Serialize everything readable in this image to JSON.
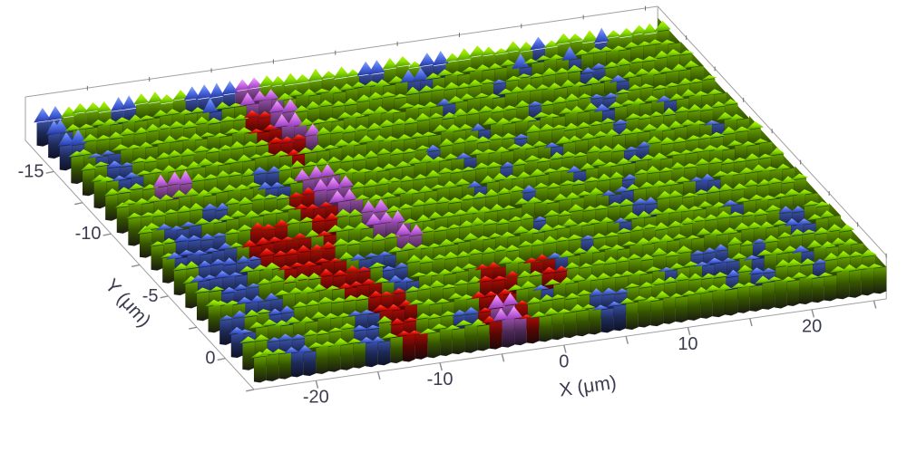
{
  "figure": {
    "description": "3D surface topography plot with categorical phase coloring",
    "background": "#ffffff"
  },
  "chart_data": {
    "type": "heatmap",
    "render_style": "3d-surface-categorical",
    "title": "",
    "xlabel": "X (μm)",
    "ylabel": "Y (μm)",
    "units": "μm",
    "x_range": [
      -25,
      26
    ],
    "y_range": [
      -17.5,
      2.5
    ],
    "x_major_ticks": [
      -20,
      -10,
      0,
      10,
      20
    ],
    "x_minor_tick_step": 5,
    "y_major_ticks": [
      -15,
      -10,
      -5,
      0
    ],
    "y_minor_tick_step": 2.5,
    "legend_position": "none",
    "grid_lines": "off",
    "axis_color": "#a0a0a0",
    "tick_color": "#8a8a8a",
    "edge_tick_color": "#6e6e6e",
    "label_color": "#3c3c50",
    "tick_font_px": 20,
    "title_font_px": 21,
    "categories": {
      "g": {
        "name": "green-matrix",
        "color": "#8ee000",
        "light": "#b6f312",
        "dark": "#4e9a00",
        "deep": "#191b10"
      },
      "b": {
        "name": "blue-phase",
        "color": "#4f6fe6",
        "light": "#8ea8f4",
        "dark": "#2537a4",
        "deep": "#0e1226"
      },
      "r": {
        "name": "red-phase",
        "color": "#e81208",
        "light": "#ff5a40",
        "dark": "#8e0300",
        "deep": "#1d0808"
      },
      "m": {
        "name": "magenta-phase",
        "color": "#d06ee8",
        "light": "#efaef4",
        "dark": "#9038b8",
        "deep": "#1c1024"
      }
    },
    "grid": {
      "ncols": 51,
      "nrows": 20,
      "cell_um": 1,
      "rows": [
        "bbggggbbggggbbbbmmggggggggbbgggbbgggggggbggggbggggg",
        "bbgggggggggggbggmmmggggggggggbbgggggggbgggbgggggggg",
        "bbgggggggggggggrrmmggggggggggggggggbggggggbbggggggg",
        "ggbbgggggggggggrrmmgggggggggggbgggggggggggggbgggggg",
        "ggbbgggggggggggrrrmgggggggggggggggggbggggbbgggggggg",
        "ggbbggggggggggggrggggggggggggggbgggggggggbggggbgggg",
        "ggggmmmgggggbbggggggggggggbggggggbgggggggbggggggggg",
        "ggggggggggggbbgmmmggggggggggbggggggbggggggggggggbgg",
        "ggggggbbgggggrrmmmggggggggggggbgggggggggbbggggggggg",
        "ggbbbggggggggrrrmmgggggggggbgggggggbggggggggggggggg",
        "ggbbbbggrrrggrrggmmgggggggggggbgggggggbgggggggggggg",
        "gbbbbbgrrrrrgrgggmmmggggggggggggggggbbgggggbbgggggg",
        "ggbbbbbrrrrrrgggggmmgggggggggbgggggggbbgggggggggggg",
        "gbbbbgggrrrrrgbbbggggggggggggggggggbggggggggbgggggg",
        "ggbbbgggggrrrrgbbggggggggggggggbgggggggggggggggbbgg",
        "gggbbbgggggrrrgbbgggggrrggrrbggggggggggggggggggbbgg",
        "bbggbbggggggrrrggggggrrrggrrggggggggggbbbggbggggggg",
        "bbggggggggbbrrrgggggrrrggbgggggggggbggbbbgbgggbgggg",
        "ggbbbggggbbgrrgggbbrmmrgggggbbbggggggggbgbbgggbgggg",
        "gggbbggggbbgrrgggggrmmrgggggbbggggggggggggggggggggg"
      ]
    }
  }
}
